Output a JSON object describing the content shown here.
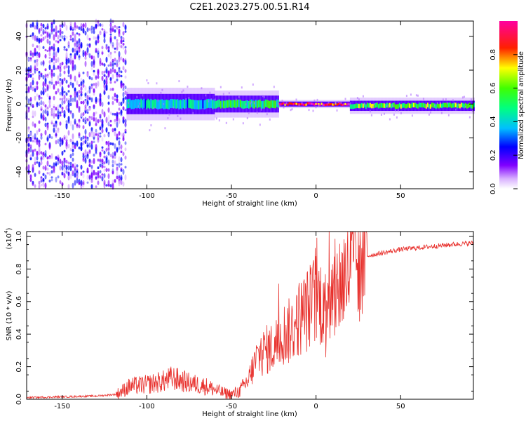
{
  "title": "C2E1.2023.275.00.51.R14",
  "chart_data": [
    {
      "type": "heatmap",
      "xlabel": "Height of straight line (km)",
      "ylabel": "Frequency (Hz)",
      "xlim": [
        -171,
        93
      ],
      "ylim": [
        -50,
        49
      ],
      "xticks": [
        -150,
        -100,
        -50,
        0,
        50
      ],
      "yticks": [
        -40,
        -20,
        0,
        20,
        40
      ],
      "colorbar": {
        "label": "Normalized spectral amplitude",
        "range": [
          0,
          1
        ],
        "ticks": [
          "0.0",
          "0.2",
          "0.4",
          "0.6",
          "0.8"
        ],
        "colormap": [
          "#ffffff",
          "#8000ff",
          "#0000ff",
          "#00ffff",
          "#00ff00",
          "#ffff00",
          "#ff0000",
          "#ff00ff"
        ]
      },
      "regions": [
        {
          "x": [
            -171,
            -112
          ],
          "freq_spread": 49,
          "amplitude": 0.12,
          "note": "broadband noise"
        },
        {
          "x": [
            -112,
            -60
          ],
          "freq_center": 0,
          "freq_halfwidth": 6,
          "amplitude": 0.35
        },
        {
          "x": [
            -60,
            -22
          ],
          "freq_center": 0,
          "freq_halfwidth": 5,
          "amplitude": 0.45
        },
        {
          "x": [
            -22,
            20
          ],
          "freq_center": 0,
          "freq_halfwidth": 1.5,
          "amplitude": 0.95
        },
        {
          "x": [
            20,
            93
          ],
          "freq_center": -1,
          "freq_halfwidth": 3,
          "amplitude": 0.55
        }
      ]
    },
    {
      "type": "line",
      "xlabel": "Height of straight line (km)",
      "ylabel": "SNR (10 * v/v)",
      "y_scale_label": "(x10",
      "y_scale_exp": "4",
      "y_scale_suffix": ")",
      "xlim": [
        -171,
        93
      ],
      "ylim": [
        0,
        1.03
      ],
      "xticks": [
        -150,
        -100,
        -50,
        0,
        50
      ],
      "yticks": [
        0.0,
        0.2,
        0.4,
        0.6,
        0.8,
        1.0
      ],
      "color": "#e8302c",
      "series": [
        {
          "x": [
            -171,
            -150,
            -130,
            -118,
            -110,
            -100,
            -90,
            -85,
            -75,
            -65,
            -55,
            -50,
            -45,
            -40,
            -35,
            -30,
            -25,
            -20,
            -15,
            -10,
            -5,
            0,
            5,
            10,
            15,
            20,
            25,
            30,
            40,
            50,
            60,
            70,
            80,
            93
          ],
          "values": [
            0.01,
            0.015,
            0.02,
            0.03,
            0.08,
            0.09,
            0.11,
            0.13,
            0.1,
            0.08,
            0.04,
            0.03,
            0.05,
            0.12,
            0.25,
            0.3,
            0.32,
            0.4,
            0.42,
            0.5,
            0.55,
            0.62,
            0.6,
            0.65,
            0.72,
            0.8,
            0.85,
            0.88,
            0.9,
            0.92,
            0.93,
            0.94,
            0.95,
            0.96
          ]
        }
      ]
    }
  ]
}
